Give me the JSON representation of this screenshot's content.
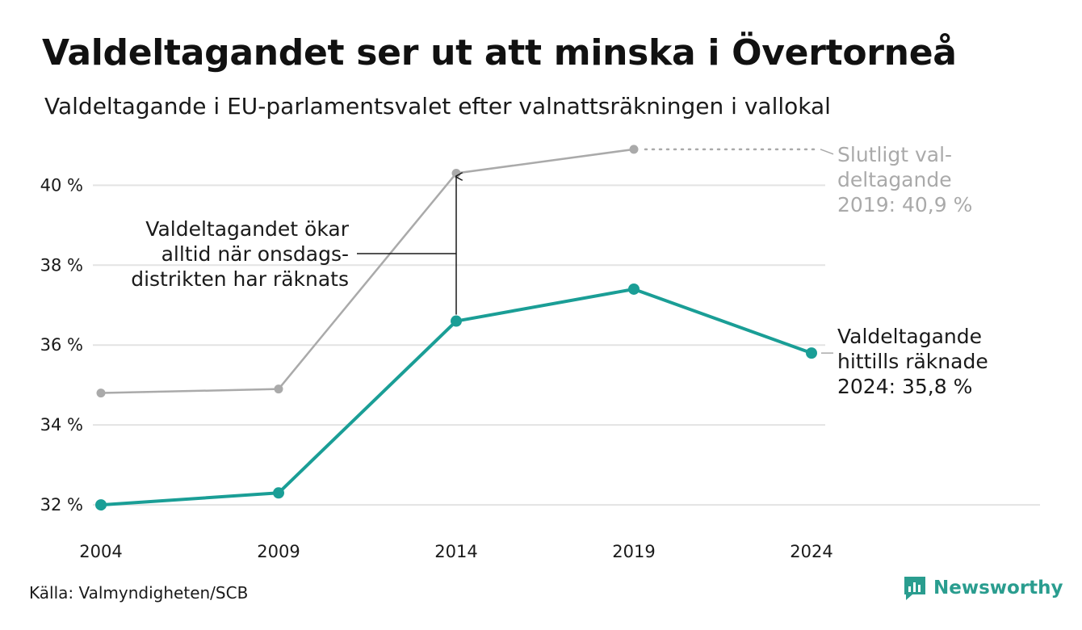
{
  "header": {
    "title": "Valdeltagandet ser ut att minska i Övertorneå",
    "subtitle": "Valdeltagande i EU-parlamentsvalet efter valnattsräkningen i vallokal"
  },
  "chart_data": {
    "type": "line",
    "x": [
      2004,
      2009,
      2014,
      2019,
      2024
    ],
    "x_tick_labels": [
      "2004",
      "2009",
      "2014",
      "2019",
      "2024"
    ],
    "y_tick_values": [
      32,
      34,
      36,
      38,
      40
    ],
    "y_tick_labels": [
      "32 %",
      "34 %",
      "36 %",
      "38 %",
      "40 %"
    ],
    "ylim": [
      31.8,
      41.2
    ],
    "grid": true,
    "series": [
      {
        "key": "final",
        "color": "#aaaaaa",
        "values": [
          34.8,
          34.9,
          40.3,
          40.9,
          null
        ]
      },
      {
        "key": "counted",
        "color": "#1a9e96",
        "values": [
          32.0,
          32.3,
          36.6,
          37.4,
          35.8
        ]
      }
    ],
    "annotations": {
      "increase_note": [
        "Valdeltagandet ökar",
        "alltid när onsdags-",
        "distrikten har räknats"
      ],
      "final_2019": [
        "Slutligt val-",
        "deltagande",
        "2019: 40,9 %"
      ],
      "counted_2024": [
        "Valdeltagande",
        "hittills räknade",
        "2024: 35,8 %"
      ]
    }
  },
  "footer": {
    "source": "Källa: Valmyndigheten/SCB",
    "brand": "Newsworthy",
    "brand_color": "#2a9d8f",
    "logo_icon": "newsworthy-logo-icon"
  }
}
